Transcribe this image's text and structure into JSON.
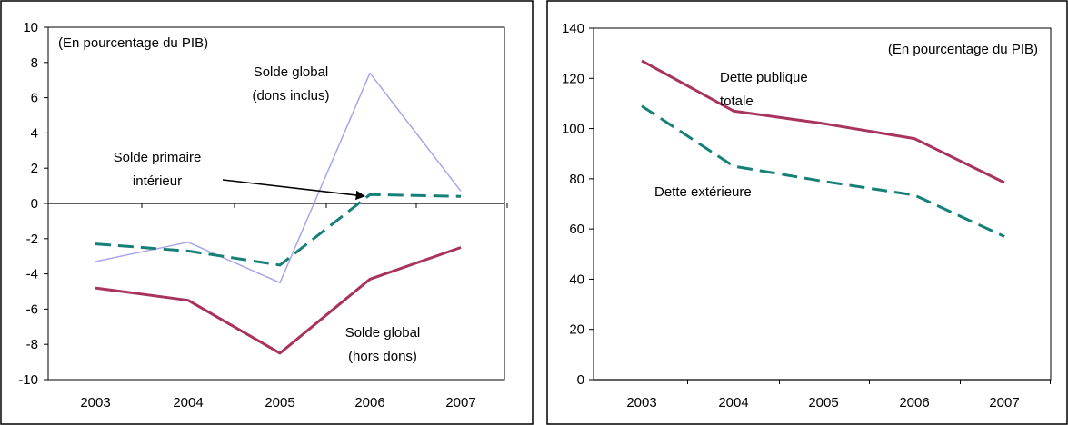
{
  "colors": {
    "solid_series": "#a8335f",
    "dashed_series": "#168077",
    "light_series": "#a6a6e8",
    "axis": "#000000",
    "background": "#ffffff"
  },
  "chart_data": [
    {
      "type": "line",
      "unit_note": "(En pourcentage du PIB)",
      "xlabel": "",
      "ylabel": "",
      "categories": [
        "2003",
        "2004",
        "2005",
        "2006",
        "2007"
      ],
      "ylim": [
        -10,
        10
      ],
      "yticks": [
        "10",
        "8",
        "6",
        "4",
        "2",
        "0",
        "-2",
        "-4",
        "-6",
        "-8",
        "-10"
      ],
      "grid": false,
      "series": [
        {
          "name": "Solde global (dons inclus)",
          "label_lines": [
            "Solde global",
            "(dons inclus)"
          ],
          "style": "light",
          "values": [
            -3.3,
            -2.2,
            -4.5,
            7.4,
            0.7
          ]
        },
        {
          "name": "Solde primaire intérieur",
          "label_lines": [
            "Solde primaire",
            "intérieur"
          ],
          "style": "dashed",
          "values": [
            -2.3,
            -2.7,
            -3.5,
            0.5,
            0.4
          ]
        },
        {
          "name": "Solde global (hors dons)",
          "label_lines": [
            "Solde global",
            "(hors dons)"
          ],
          "style": "solid",
          "values": [
            -4.8,
            -5.5,
            -8.5,
            -4.3,
            -2.5
          ]
        }
      ]
    },
    {
      "type": "line",
      "unit_note": "(En pourcentage du PIB)",
      "xlabel": "",
      "ylabel": "",
      "categories": [
        "2003",
        "2004",
        "2005",
        "2006",
        "2007"
      ],
      "ylim": [
        0,
        140
      ],
      "yticks": [
        "140",
        "120",
        "100",
        "80",
        "60",
        "40",
        "20",
        "0"
      ],
      "grid": false,
      "series": [
        {
          "name": "Dette publique totale",
          "label_lines": [
            "Dette publique",
            "totale"
          ],
          "style": "solid",
          "values": [
            127,
            107,
            102,
            96,
            78.5
          ]
        },
        {
          "name": "Dette extérieure",
          "label_lines": [
            "Dette extérieure"
          ],
          "style": "dashed",
          "values": [
            109,
            85,
            79,
            73.5,
            57
          ]
        }
      ]
    }
  ]
}
